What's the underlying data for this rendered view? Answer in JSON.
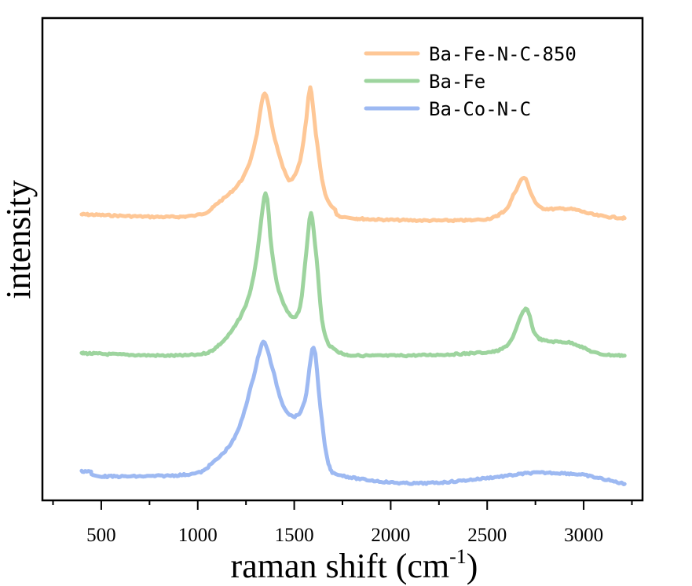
{
  "chart_data": {
    "type": "line",
    "title": "",
    "xlabel": "raman shift (cm",
    "xlabel_sup": "-1",
    "xlabel_close": ")",
    "ylabel": "intensity",
    "xlim": [
      195,
      3305
    ],
    "ylim": [
      0,
      1
    ],
    "grid": false,
    "legend_position": "top-right",
    "x_ticks": [
      500,
      1000,
      1500,
      2000,
      2500,
      3000
    ],
    "x_tick_labels": [
      "500",
      "1000",
      "1500",
      "2000",
      "2500",
      "3000"
    ],
    "x_minor_ticks": [
      250,
      750,
      1250,
      1750,
      2250,
      2750,
      3250
    ],
    "y_ticks_shown": false,
    "series": [
      {
        "name": "Ba-Fe-N-C-850",
        "color": "#FEC796",
        "x": [
          398,
          952,
          1115,
          1237,
          1298,
          1347,
          1392,
          1441,
          1481,
          1530,
          1563,
          1583,
          1612,
          1653,
          1705,
          1807,
          2418,
          2581,
          2642,
          2691,
          2735,
          2784,
          2935,
          3069,
          3212
        ],
        "y": [
          0.593,
          0.589,
          0.62,
          0.671,
          0.744,
          0.844,
          0.761,
          0.692,
          0.663,
          0.704,
          0.793,
          0.857,
          0.761,
          0.647,
          0.606,
          0.585,
          0.581,
          0.598,
          0.638,
          0.669,
          0.63,
          0.606,
          0.604,
          0.591,
          0.585
        ]
      },
      {
        "name": "Ba-Fe",
        "color": "#9DD49E",
        "x": [
          398,
          952,
          1115,
          1237,
          1298,
          1351,
          1384,
          1420,
          1481,
          1530,
          1563,
          1587,
          1616,
          1653,
          1726,
          1889,
          2418,
          2601,
          2699,
          2764,
          2939,
          3069,
          3212
        ],
        "y": [
          0.305,
          0.301,
          0.324,
          0.394,
          0.484,
          0.635,
          0.516,
          0.435,
          0.383,
          0.402,
          0.516,
          0.596,
          0.5,
          0.353,
          0.309,
          0.3,
          0.305,
          0.321,
          0.396,
          0.337,
          0.326,
          0.305,
          0.3
        ]
      },
      {
        "name": "Ba-Co-N-C",
        "color": "#9DB9F2",
        "x": [
          398,
          443,
          504,
          952,
          1074,
          1196,
          1278,
          1318,
          1347,
          1388,
          1441,
          1502,
          1555,
          1600,
          1636,
          1677,
          1746,
          2010,
          2255,
          2581,
          2743,
          2947,
          3069,
          3212
        ],
        "y": [
          0.06,
          0.06,
          0.05,
          0.054,
          0.077,
          0.134,
          0.239,
          0.305,
          0.327,
          0.272,
          0.199,
          0.174,
          0.207,
          0.318,
          0.191,
          0.077,
          0.052,
          0.037,
          0.037,
          0.05,
          0.057,
          0.055,
          0.047,
          0.034
        ]
      }
    ]
  }
}
